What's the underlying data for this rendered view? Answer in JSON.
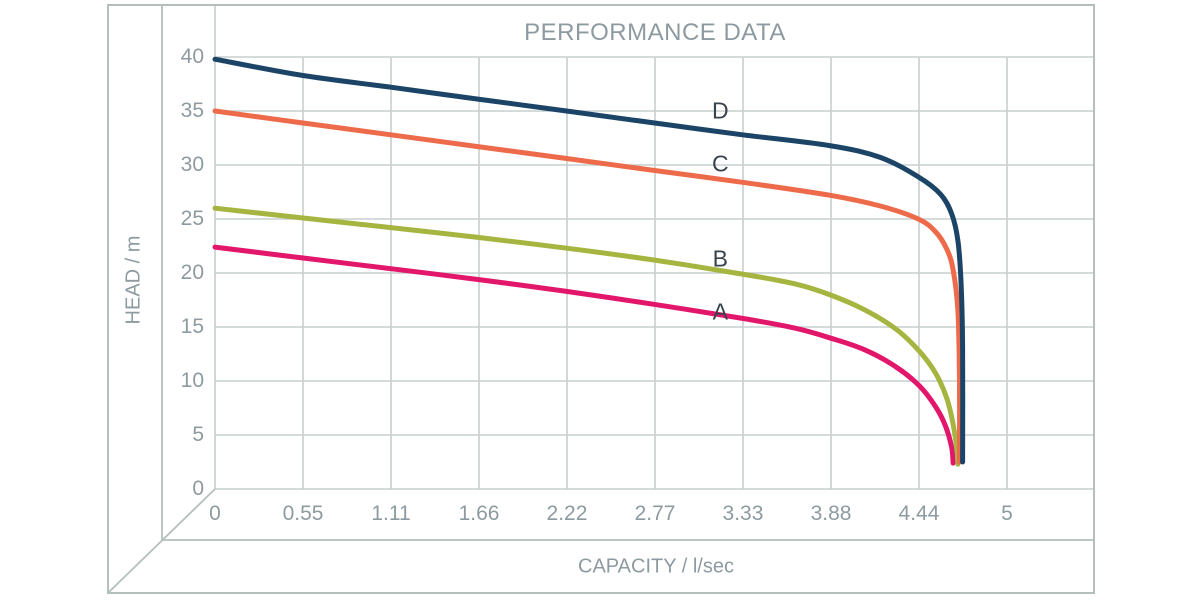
{
  "chart_data": {
    "type": "line",
    "title": "PERFORMANCE DATA",
    "xlabel": "CAPACITY / l/sec",
    "ylabel": "HEAD / m",
    "xlim": [
      0,
      5
    ],
    "ylim": [
      0,
      40
    ],
    "grid": true,
    "legend_position": "inline-curve-labels",
    "x_ticks": [
      {
        "value": 0,
        "label": "0"
      },
      {
        "value": 0.5556,
        "label": "0.55"
      },
      {
        "value": 1.1111,
        "label": "1.11"
      },
      {
        "value": 1.6667,
        "label": "1.66"
      },
      {
        "value": 2.2222,
        "label": "2.22"
      },
      {
        "value": 2.7778,
        "label": "2.77"
      },
      {
        "value": 3.3333,
        "label": "3.33"
      },
      {
        "value": 3.8889,
        "label": "3.88"
      },
      {
        "value": 4.4444,
        "label": "4.44"
      },
      {
        "value": 5,
        "label": "5"
      }
    ],
    "y_ticks": [
      {
        "value": 0,
        "label": "0"
      },
      {
        "value": 5,
        "label": "5"
      },
      {
        "value": 10,
        "label": "10"
      },
      {
        "value": 15,
        "label": "15"
      },
      {
        "value": 20,
        "label": "20"
      },
      {
        "value": 25,
        "label": "25"
      },
      {
        "value": 30,
        "label": "30"
      },
      {
        "value": 35,
        "label": "35"
      },
      {
        "value": 40,
        "label": "40"
      }
    ],
    "series": [
      {
        "name": "A",
        "color": "#e2176c",
        "label_pos": {
          "x": 3.19,
          "y": 16.4
        },
        "points": [
          [
            0,
            22.4
          ],
          [
            0.55,
            21.4
          ],
          [
            1.11,
            20.4
          ],
          [
            1.66,
            19.4
          ],
          [
            2.22,
            18.3
          ],
          [
            2.77,
            17.1
          ],
          [
            3.33,
            15.8
          ],
          [
            3.66,
            14.9
          ],
          [
            3.88,
            14.0
          ],
          [
            4.1,
            12.9
          ],
          [
            4.3,
            11.3
          ],
          [
            4.45,
            9.5
          ],
          [
            4.55,
            7.6
          ],
          [
            4.61,
            5.9
          ],
          [
            4.65,
            3.9
          ],
          [
            4.66,
            2.4
          ]
        ]
      },
      {
        "name": "B",
        "color": "#a6b440",
        "label_pos": {
          "x": 3.19,
          "y": 21.3
        },
        "points": [
          [
            0,
            26.0
          ],
          [
            0.55,
            25.1
          ],
          [
            1.11,
            24.2
          ],
          [
            1.66,
            23.3
          ],
          [
            2.22,
            22.3
          ],
          [
            2.77,
            21.2
          ],
          [
            3.33,
            19.9
          ],
          [
            3.66,
            19.0
          ],
          [
            3.88,
            18.0
          ],
          [
            4.1,
            16.6
          ],
          [
            4.3,
            14.8
          ],
          [
            4.45,
            12.7
          ],
          [
            4.55,
            10.7
          ],
          [
            4.62,
            8.4
          ],
          [
            4.66,
            6.0
          ],
          [
            4.685,
            3.5
          ],
          [
            4.69,
            2.3
          ]
        ]
      },
      {
        "name": "C",
        "color": "#ed6b4b",
        "label_pos": {
          "x": 3.19,
          "y": 30.1
        },
        "points": [
          [
            0,
            35.0
          ],
          [
            0.55,
            33.9
          ],
          [
            1.11,
            32.8
          ],
          [
            1.66,
            31.7
          ],
          [
            2.22,
            30.6
          ],
          [
            2.77,
            29.5
          ],
          [
            3.33,
            28.4
          ],
          [
            3.88,
            27.2
          ],
          [
            4.2,
            26.2
          ],
          [
            4.44,
            25.0
          ],
          [
            4.55,
            23.8
          ],
          [
            4.62,
            22.2
          ],
          [
            4.66,
            20.3
          ],
          [
            4.69,
            16.5
          ],
          [
            4.7,
            10.0
          ],
          [
            4.7,
            2.5
          ]
        ]
      },
      {
        "name": "D",
        "color": "#1c4467",
        "label_pos": {
          "x": 3.19,
          "y": 35.0
        },
        "points": [
          [
            0,
            39.8
          ],
          [
            0.55,
            38.3
          ],
          [
            1.11,
            37.2
          ],
          [
            1.66,
            36.1
          ],
          [
            2.22,
            35.0
          ],
          [
            2.77,
            33.9
          ],
          [
            3.33,
            32.8
          ],
          [
            3.88,
            31.8
          ],
          [
            4.2,
            30.7
          ],
          [
            4.44,
            28.9
          ],
          [
            4.58,
            27.3
          ],
          [
            4.65,
            25.5
          ],
          [
            4.69,
            23.0
          ],
          [
            4.71,
            19.0
          ],
          [
            4.72,
            13.0
          ],
          [
            4.72,
            2.5
          ]
        ]
      }
    ]
  },
  "colors": {
    "background": "#ffffff",
    "grid": "#c6cfcd",
    "frame": "#b4bfbd",
    "text": "#8d9ba0",
    "curve_label": "#39434d"
  }
}
